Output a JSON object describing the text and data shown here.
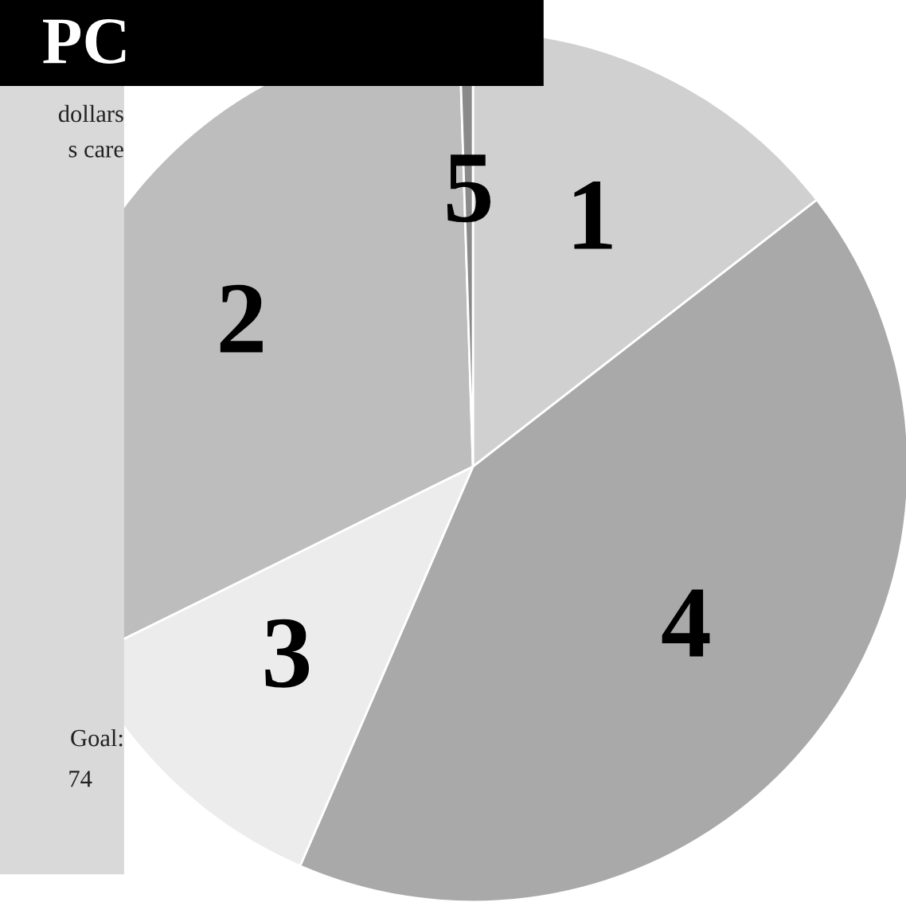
{
  "chart_data": {
    "type": "pie",
    "title": "PC",
    "categories": [
      "1",
      "4",
      "3",
      "2",
      "5"
    ],
    "values": [
      14.5,
      42,
      11.2,
      31.8,
      0.5
    ],
    "colors": [
      "#d0d0d0",
      "#a9a9a9",
      "#ececec",
      "#bdbdbd",
      "#8a8a8a"
    ],
    "annotations": [
      "dollars",
      "s care",
      "Goal:",
      "74"
    ]
  }
}
